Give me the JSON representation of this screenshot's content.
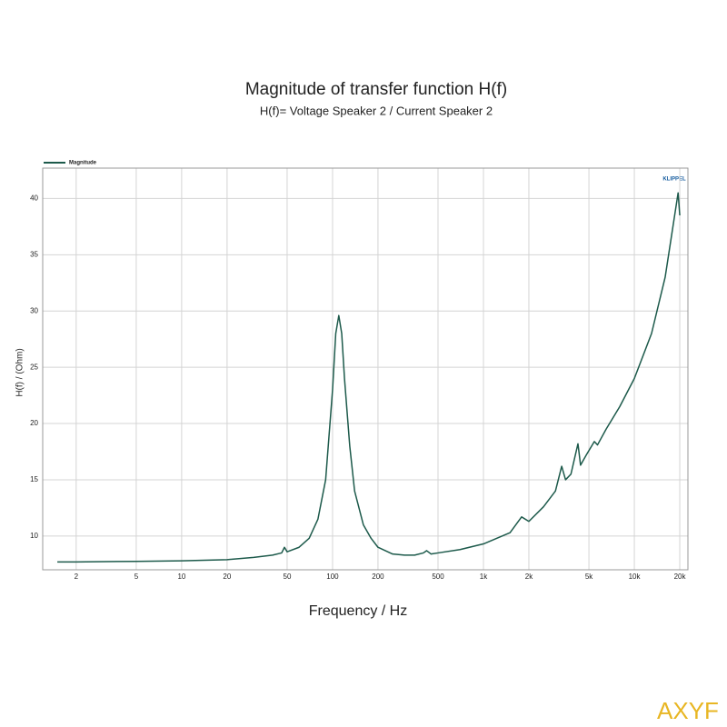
{
  "chart_data": {
    "type": "line",
    "title": "Magnitude of transfer function H(f)",
    "subtitle": "H(f)= Voltage Speaker 2 / Current Speaker 2",
    "x_label": "Frequency / Hz",
    "y_label": "H(f) / (Ohm)",
    "logo": "KLIPPEL",
    "watermark": "AXYF",
    "x_log": true,
    "grid": true,
    "legend": "top-left",
    "xlim": [
      1.2,
      22650
    ],
    "ylim": [
      7,
      42.7
    ],
    "xticks": [
      2,
      5,
      10,
      20,
      50,
      100,
      200,
      500,
      {
        "value": 1000,
        "label": "1k"
      },
      {
        "value": 2000,
        "label": "2k"
      },
      {
        "value": 5000,
        "label": "5k"
      },
      {
        "value": 10000,
        "label": "10k"
      },
      {
        "value": 20000,
        "label": "20k"
      }
    ],
    "yticks": [
      10,
      15,
      20,
      25,
      30,
      35,
      40
    ],
    "x": [
      1.5,
      2,
      5,
      10,
      20,
      30,
      40,
      46,
      48,
      50,
      60,
      70,
      80,
      90,
      100,
      105,
      110,
      115,
      120,
      130,
      140,
      160,
      180,
      200,
      250,
      300,
      350,
      400,
      420,
      450,
      500,
      700,
      1000,
      1500,
      1790,
      2000,
      2500,
      3000,
      3300,
      3500,
      3800,
      4000,
      4230,
      4400,
      4800,
      5430,
      5700,
      6500,
      8000,
      10000,
      13000,
      16000,
      19500,
      20000
    ],
    "series": [
      {
        "name": "Magnitude",
        "color": "#1d5a4b",
        "values": [
          7.7,
          7.7,
          7.75,
          7.8,
          7.9,
          8.1,
          8.3,
          8.5,
          9.0,
          8.6,
          9.0,
          9.8,
          11.5,
          15,
          23,
          28,
          29.6,
          28,
          24,
          18,
          14,
          11,
          9.8,
          9.0,
          8.4,
          8.3,
          8.3,
          8.5,
          8.7,
          8.4,
          8.5,
          8.8,
          9.3,
          10.3,
          11.7,
          11.3,
          12.6,
          14,
          16.2,
          15,
          15.5,
          16.8,
          18.2,
          16.3,
          17.2,
          18.4,
          18.1,
          19.5,
          21.5,
          24,
          28,
          33,
          40.5,
          38.5
        ]
      }
    ]
  }
}
